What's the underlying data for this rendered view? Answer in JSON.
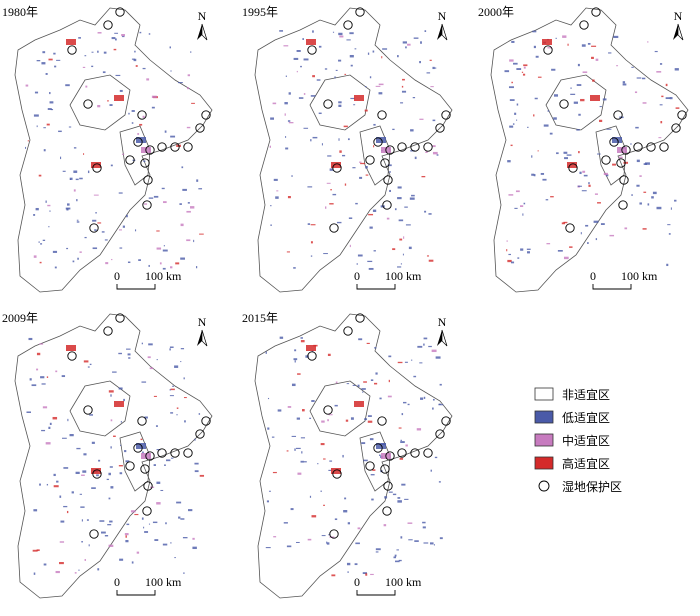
{
  "panels": [
    {
      "year": "1980年",
      "north": "N",
      "scale": {
        "zero": "0",
        "distance": "100 km"
      }
    },
    {
      "year": "1995年",
      "north": "N",
      "scale": {
        "zero": "0",
        "distance": "100 km"
      }
    },
    {
      "year": "2000年",
      "north": "N",
      "scale": {
        "zero": "0",
        "distance": "100 km"
      }
    },
    {
      "year": "2009年",
      "north": "N",
      "scale": {
        "zero": "0",
        "distance": "100 km"
      }
    },
    {
      "year": "2015年",
      "north": "N",
      "scale": {
        "zero": "0",
        "distance": "100 km"
      }
    }
  ],
  "legend": [
    {
      "label": "非适宜区",
      "color": "#ffffff"
    },
    {
      "label": "低适宜区",
      "color": "#4a5aa8"
    },
    {
      "label": "中适宜区",
      "color": "#c77bbf"
    },
    {
      "label": "高适宜区",
      "color": "#d42a2a"
    },
    {
      "label": "湿地保护区",
      "color": "#ffffff"
    }
  ]
}
